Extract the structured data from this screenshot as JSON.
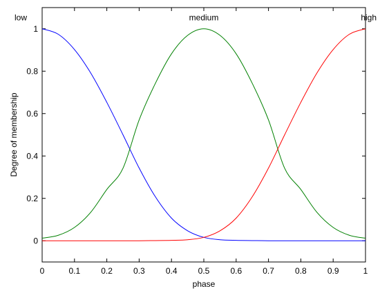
{
  "chart_data": {
    "type": "line",
    "title": "",
    "xlabel": "phase",
    "ylabel": "Degree of membership",
    "xlim": [
      0,
      1
    ],
    "ylim": [
      -0.1,
      1.1
    ],
    "xticks": [
      0,
      0.1,
      0.2,
      0.3,
      0.4,
      0.5,
      0.6,
      0.7,
      0.8,
      0.9,
      1
    ],
    "xtick_labels": [
      "0",
      "0.1",
      "0.2",
      "0.3",
      "0.4",
      "0.5",
      "0.6",
      "0.7",
      "0.8",
      "0.9",
      "1"
    ],
    "yticks": [
      0,
      0.2,
      0.4,
      0.6,
      0.8,
      1
    ],
    "ytick_labels": [
      "0",
      "0.2",
      "0.4",
      "0.6",
      "0.8",
      "1"
    ],
    "grid": false,
    "x": [
      0,
      0.05,
      0.1,
      0.15,
      0.2,
      0.25,
      0.3,
      0.35,
      0.4,
      0.45,
      0.5,
      0.55,
      0.6,
      0.65,
      0.7,
      0.75,
      0.8,
      0.85,
      0.9,
      0.95,
      1
    ],
    "series": [
      {
        "name": "low",
        "color": "#0000ff",
        "values": [
          1.0,
          0.974,
          0.902,
          0.792,
          0.653,
          0.5,
          0.343,
          0.208,
          0.107,
          0.047,
          0.016,
          0.005,
          0.002,
          0.001,
          0.0,
          0.0,
          0.0,
          0.0,
          0.0,
          0.0,
          0.0
        ]
      },
      {
        "name": "medium",
        "color": "#008000",
        "values": [
          0.012,
          0.026,
          0.063,
          0.134,
          0.242,
          0.342,
          0.57,
          0.742,
          0.882,
          0.969,
          1.0,
          0.969,
          0.882,
          0.742,
          0.57,
          0.342,
          0.242,
          0.134,
          0.063,
          0.026,
          0.012
        ]
      },
      {
        "name": "high",
        "color": "#ff0000",
        "values": [
          0.0,
          0.0,
          0.0,
          0.0,
          0.0,
          0.0,
          0.0,
          0.001,
          0.002,
          0.005,
          0.016,
          0.047,
          0.107,
          0.208,
          0.343,
          0.5,
          0.653,
          0.792,
          0.902,
          0.974,
          1.0
        ]
      }
    ],
    "labels": [
      {
        "text": "low",
        "x": 0,
        "y": 1.04
      },
      {
        "text": "medium",
        "x": 0.5,
        "y": 1.04
      },
      {
        "text": "high",
        "x": 1,
        "y": 1.04
      }
    ]
  }
}
